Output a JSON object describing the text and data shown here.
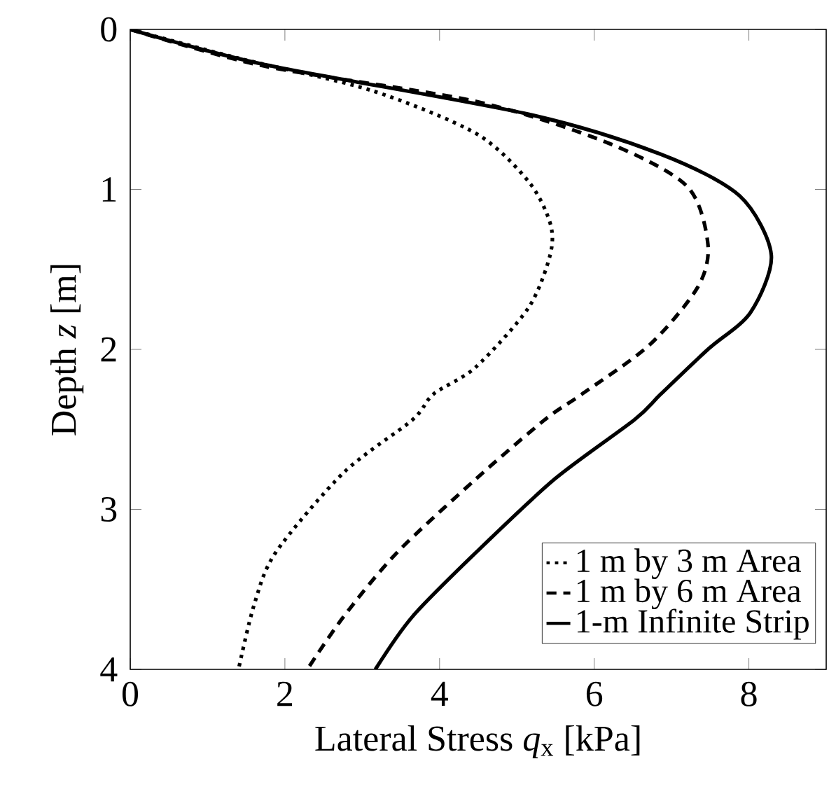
{
  "chart_data": {
    "type": "line",
    "xlabel": "Lateral Stress *q*$_{x}$ [kPa]",
    "ylabel": "Depth *z* [m]",
    "xlim": [
      0,
      9
    ],
    "ylim": [
      4,
      0
    ],
    "xticks": [
      0,
      2,
      4,
      6,
      8
    ],
    "yticks": [
      0,
      1,
      2,
      3,
      4
    ],
    "legend": "bottom right",
    "grid": false,
    "series": [
      {
        "name": "1 m by 3 m Area",
        "color": "#000000",
        "line_style": "dotted",
        "x": [
          0,
          1.4,
          3.11,
          4.47,
          5.15,
          5.43,
          5.43,
          5.15,
          4.47,
          3.92,
          3.65,
          2.76,
          1.88,
          1.6,
          1.4
        ],
        "values": [
          0,
          0.18,
          0.38,
          0.65,
          0.95,
          1.21,
          1.41,
          1.74,
          2.11,
          2.28,
          2.44,
          2.77,
          3.27,
          3.6,
          4.0
        ]
      },
      {
        "name": "1 m by 6 m Area",
        "color": "#000000",
        "line_style": "dashed",
        "x": [
          0,
          1.74,
          4.47,
          6.18,
          7.2,
          7.47,
          7.34,
          6.72,
          5.84,
          5.36,
          4.47,
          3.45,
          2.76,
          2.29
        ],
        "values": [
          0,
          0.23,
          0.45,
          0.71,
          0.98,
          1.34,
          1.61,
          1.97,
          2.28,
          2.44,
          2.81,
          3.27,
          3.67,
          4.0
        ]
      },
      {
        "name": "1-m Infinite Strip",
        "color": "#000000",
        "line_style": "solid",
        "x": [
          0,
          1.74,
          5.15,
          6.86,
          7.88,
          8.29,
          8.02,
          7.47,
          6.86,
          6.52,
          5.49,
          4.47,
          3.65,
          3.17
        ],
        "values": [
          0,
          0.22,
          0.53,
          0.78,
          1.04,
          1.41,
          1.77,
          2.0,
          2.28,
          2.44,
          2.81,
          3.27,
          3.67,
          4.0
        ]
      }
    ]
  }
}
